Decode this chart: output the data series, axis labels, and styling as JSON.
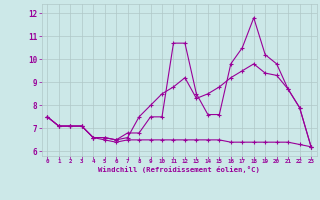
{
  "x_labels": [
    "0",
    "1",
    "2",
    "3",
    "4",
    "5",
    "6",
    "7",
    "8",
    "9",
    "10",
    "11",
    "12",
    "13",
    "14",
    "15",
    "16",
    "17",
    "18",
    "19",
    "20",
    "21",
    "22",
    "23"
  ],
  "x_values": [
    0,
    1,
    2,
    3,
    4,
    5,
    6,
    7,
    8,
    9,
    10,
    11,
    12,
    13,
    14,
    15,
    16,
    17,
    18,
    19,
    20,
    21,
    22,
    23
  ],
  "line1_x": [
    0,
    1,
    2,
    3,
    4,
    5,
    6,
    7,
    8,
    9,
    10,
    11,
    12,
    13,
    14,
    15,
    16,
    17,
    18,
    19,
    20,
    21,
    22,
    23
  ],
  "line1_y": [
    7.5,
    7.1,
    7.1,
    7.1,
    6.6,
    6.6,
    6.5,
    6.8,
    6.8,
    7.5,
    7.5,
    10.7,
    10.7,
    8.5,
    7.6,
    7.6,
    9.8,
    10.5,
    11.8,
    10.2,
    9.8,
    8.7,
    7.9,
    6.2
  ],
  "line2_x": [
    0,
    1,
    2,
    3,
    4,
    5,
    6,
    7,
    8,
    9,
    10,
    11,
    12,
    13,
    14,
    15,
    16,
    17,
    18,
    19,
    20,
    21,
    22,
    23
  ],
  "line2_y": [
    7.5,
    7.1,
    7.1,
    7.1,
    6.6,
    6.6,
    6.5,
    6.6,
    7.5,
    8.0,
    8.5,
    8.8,
    9.2,
    8.3,
    8.5,
    8.8,
    9.2,
    9.5,
    9.8,
    9.4,
    9.3,
    8.7,
    7.9,
    6.2
  ],
  "line3_x": [
    0,
    1,
    2,
    3,
    4,
    5,
    6,
    7,
    8,
    9,
    10,
    11,
    12,
    13,
    14,
    15,
    16,
    17,
    18,
    19,
    20,
    21,
    22,
    23
  ],
  "line3_y": [
    7.5,
    7.1,
    7.1,
    7.1,
    6.6,
    6.5,
    6.4,
    6.5,
    6.5,
    6.5,
    6.5,
    6.5,
    6.5,
    6.5,
    6.5,
    6.5,
    6.4,
    6.4,
    6.4,
    6.4,
    6.4,
    6.4,
    6.3,
    6.2
  ],
  "bg_color": "#cce8e8",
  "line_color": "#990099",
  "grid_color": "#b0c8c8",
  "tick_color": "#990099",
  "ylim": [
    5.8,
    12.4
  ],
  "xlim": [
    -0.5,
    23.5
  ],
  "yticks": [
    6,
    7,
    8,
    9,
    10,
    11,
    12
  ],
  "xlabel": "Windchill (Refroidissement éolien,°C)",
  "figsize": [
    3.2,
    2.0
  ],
  "dpi": 100
}
